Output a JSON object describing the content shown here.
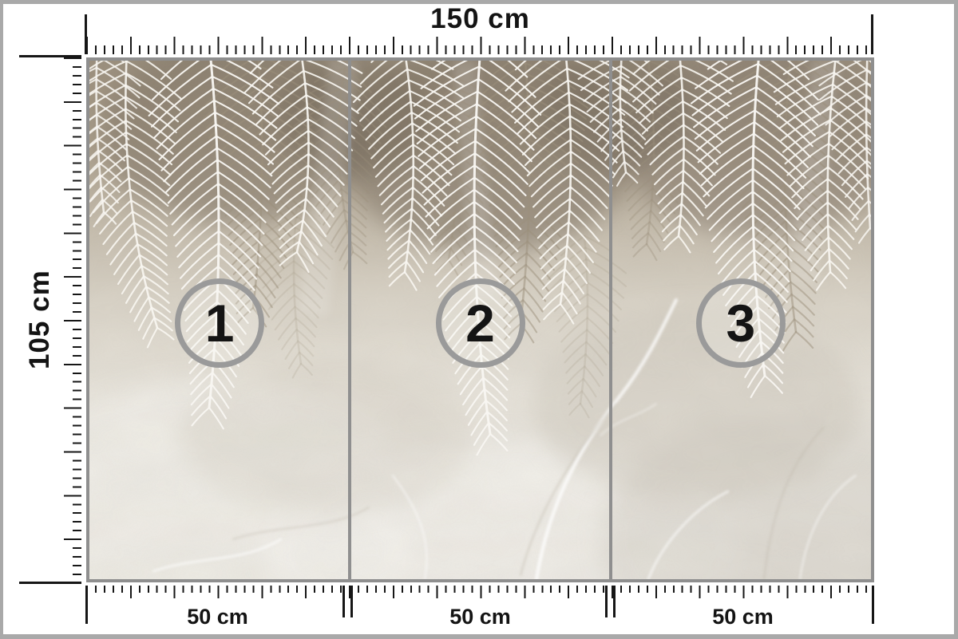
{
  "page": {
    "type": "wall-mural panel dimension diagram",
    "background": "#ffffff",
    "frame_color": "#a9a9a9",
    "tick_color": "#161616"
  },
  "rulers": {
    "top": {
      "label": "150 cm"
    },
    "left": {
      "label": "105 cm"
    },
    "bottom": [
      {
        "label": "50 cm"
      },
      {
        "label": "50 cm"
      },
      {
        "label": "50 cm"
      }
    ]
  },
  "panels": [
    {
      "number": "1"
    },
    {
      "number": "2"
    },
    {
      "number": "3"
    }
  ],
  "badge": {
    "border_color": "#9a9a9a",
    "text_color": "#141414"
  },
  "mural": {
    "scene": "white palm leaves hanging over a light concrete wall",
    "border_color": "#8f8f8f",
    "panel_count": 3,
    "colors": {
      "leaf": "#f8f6f1",
      "leaf_shadow": "#9c8f7b",
      "wall_dark": "#7e7263",
      "wall_mid": "#c2b9a9",
      "wall_light": "#e9e6df",
      "vein": "#ffffff"
    }
  }
}
